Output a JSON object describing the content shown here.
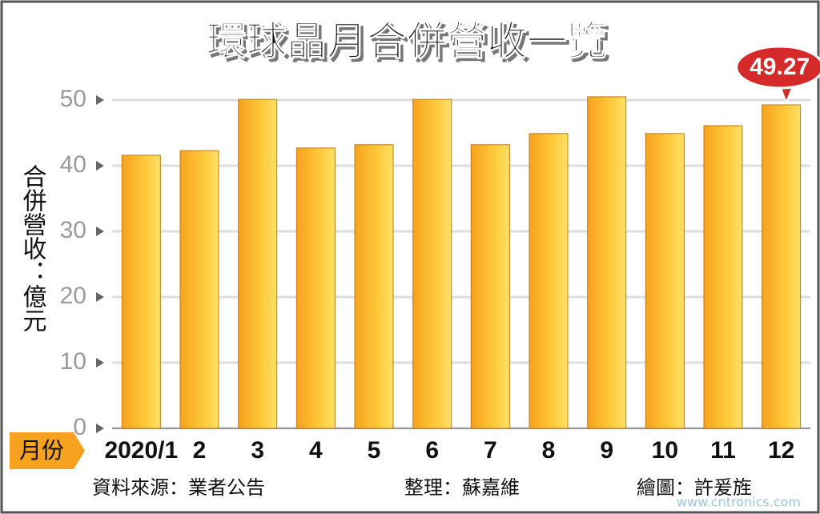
{
  "chart_data": {
    "type": "bar",
    "title": "環球晶月合併營收一覽",
    "y_label": "合併營收：億元",
    "x_label": "月份",
    "categories": [
      "2020/1",
      "2",
      "3",
      "4",
      "5",
      "6",
      "7",
      "8",
      "9",
      "10",
      "11",
      "12"
    ],
    "values": [
      41.6,
      42.3,
      50.1,
      42.7,
      43.2,
      50.1,
      43.2,
      44.9,
      50.5,
      44.9,
      46.1,
      49.27
    ],
    "color": "#f6a21e",
    "ylim": [
      0,
      52
    ],
    "yticks": [
      0,
      10,
      20,
      30,
      40,
      50
    ],
    "grid": true,
    "source": "資料來源：業者公告",
    "editor": "整理：蘇嘉維",
    "artist": "繪圖：許爰旌",
    "watermark": "www.cntronics.com"
  }
}
